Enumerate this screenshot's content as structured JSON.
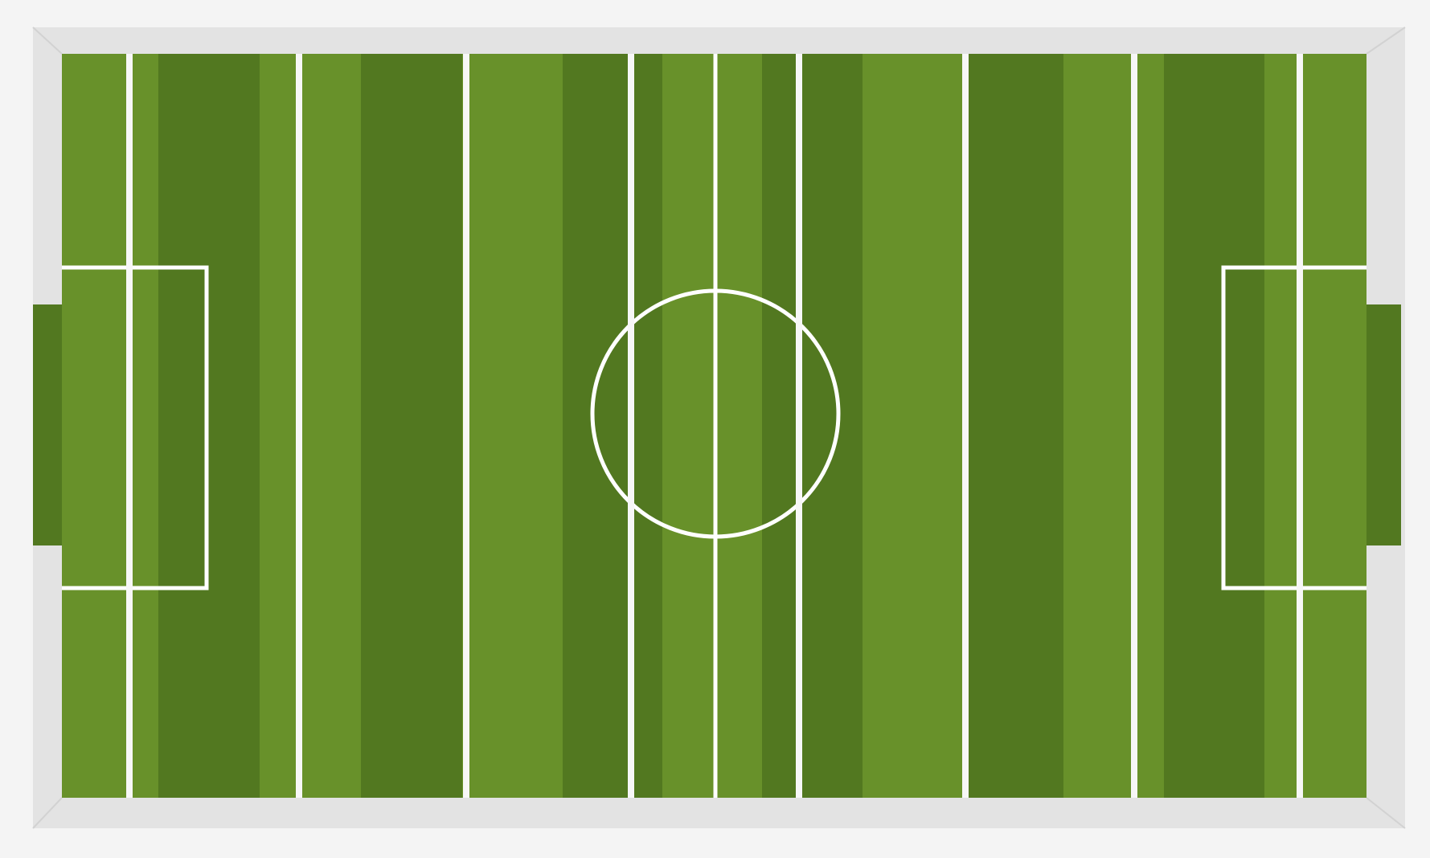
{
  "game": {
    "type": "foosball",
    "view": "top-down table",
    "colors": {
      "background": "#f4f4f4",
      "frame": "#e3e3e3",
      "frame_edge": "#d2d2d2",
      "grass_light": "#68912a",
      "grass_dark": "#527820",
      "goal": "#527820",
      "lines": "#ffffff",
      "rod": "#f7f7f7"
    },
    "pitch": {
      "stripe_pattern": [
        "light",
        "dark",
        "light",
        "dark",
        "light",
        "dark",
        "light",
        "dark",
        "light",
        "dark",
        "light",
        "dark",
        "light",
        "dark",
        "light",
        "dark",
        "light"
      ],
      "center_line": true,
      "center_circle": true,
      "penalty_boxes": 2
    },
    "rods": {
      "count": 8,
      "names": [
        "rod-1",
        "rod-2",
        "rod-3",
        "rod-4",
        "rod-5",
        "rod-6",
        "rod-7",
        "rod-8"
      ]
    },
    "goals": [
      "left-goal",
      "right-goal"
    ]
  }
}
